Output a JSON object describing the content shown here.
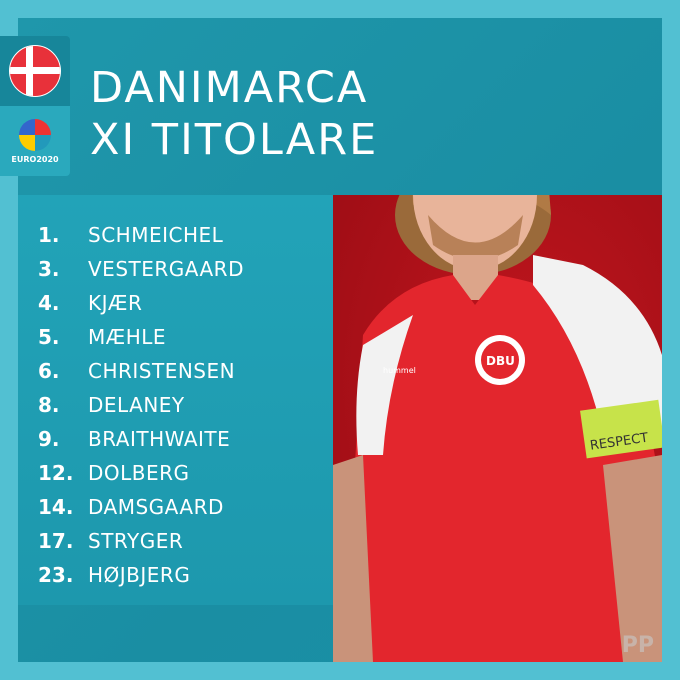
{
  "header": {
    "title_line1": "DANIMARCA",
    "title_line2": "XI TITOLARE"
  },
  "badge": {
    "flag": "denmark-flag",
    "logo_text": "EURO2020"
  },
  "lineup": [
    {
      "number": "1.",
      "name": "SCHMEICHEL"
    },
    {
      "number": "3.",
      "name": "VESTERGAARD"
    },
    {
      "number": "4.",
      "name": "KJÆR"
    },
    {
      "number": "5.",
      "name": "MÆHLE"
    },
    {
      "number": "6.",
      "name": "CHRISTENSEN"
    },
    {
      "number": "8.",
      "name": "DELANEY"
    },
    {
      "number": "9.",
      "name": "BRAITHWAITE"
    },
    {
      "number": "12.",
      "name": "DOLBERG"
    },
    {
      "number": "14.",
      "name": "DAMSGAARD"
    },
    {
      "number": "17.",
      "name": "STRYGER"
    },
    {
      "number": "23.",
      "name": "HØJBJERG"
    }
  ],
  "photo": {
    "armband_text": "RESPECT",
    "crest_text": "DBU",
    "brand_text": "hummel"
  },
  "watermark": "PP",
  "colors": {
    "frame": "#52c0d2",
    "panel": "#1b93a8",
    "photo_bg": "#b0121a",
    "shirt": "#e3262d"
  }
}
